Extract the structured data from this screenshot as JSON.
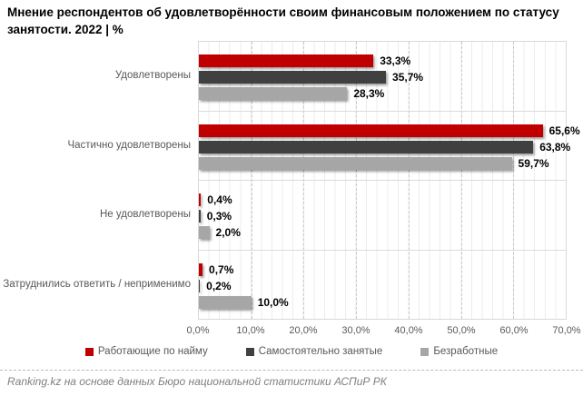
{
  "title": {
    "line1": "Мнение респондентов об удовлетворённости своим финансовым положением по статусу",
    "line2": "занятости. 2022 | %"
  },
  "footer": {
    "text": "Ranking.kz на основе данных Бюро национальной статистики АСПиР РК"
  },
  "chart_data": {
    "type": "bar",
    "orientation": "horizontal",
    "title": "Мнение респондентов об удовлетворённости своим финансовым положением по статусу занятости. 2022 | %",
    "categories": [
      "Удовлетворены",
      "Частично удовлетворены",
      "Не удовлетворены",
      "Затруднились ответить / неприменимо"
    ],
    "series": [
      {
        "name": "Работающие по найму",
        "color": "#C00000",
        "values": [
          33.3,
          65.6,
          0.4,
          0.7
        ]
      },
      {
        "name": "Самостоятельно занятые",
        "color": "#404040",
        "values": [
          35.7,
          63.8,
          0.3,
          0.2
        ]
      },
      {
        "name": "Безработные",
        "color": "#A6A6A6",
        "values": [
          28.3,
          59.7,
          2.0,
          10.0
        ]
      }
    ],
    "value_labels": [
      [
        "33,3%",
        "35,7%",
        "28,3%"
      ],
      [
        "65,6%",
        "63,8%",
        "59,7%"
      ],
      [
        "0,4%",
        "0,3%",
        "2,0%"
      ],
      [
        "0,7%",
        "0,2%",
        "10,0%"
      ]
    ],
    "x_axis": {
      "min": 0,
      "max": 70,
      "major_step": 10,
      "minor_step": 2,
      "ticks": [
        "0,0%",
        "10,0%",
        "20,0%",
        "30,0%",
        "40,0%",
        "50,0%",
        "60,0%",
        "70,0%"
      ]
    },
    "legend_position": "bottom",
    "grid": "on"
  }
}
